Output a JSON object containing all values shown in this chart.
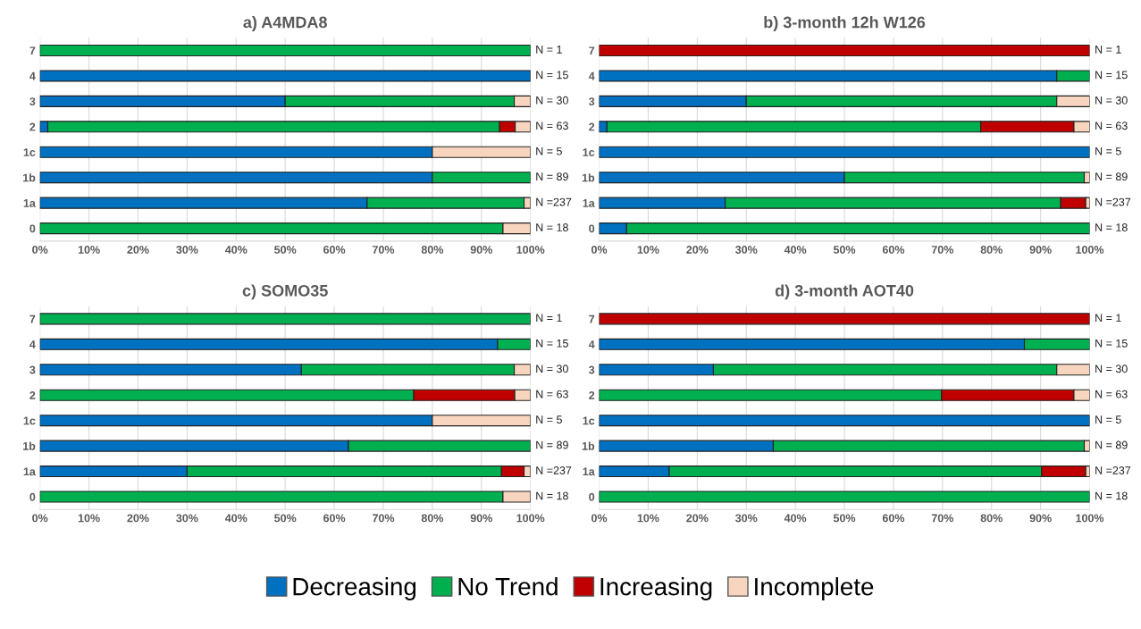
{
  "chart_data": [
    {
      "type": "bar",
      "orientation": "horizontal",
      "stacked": true,
      "title": "a) A4MDA8",
      "categories": [
        "7",
        "4",
        "3",
        "2",
        "1c",
        "1b",
        "1a",
        "0"
      ],
      "series": [
        {
          "name": "Decreasing",
          "color": "#0070c0",
          "values": [
            null,
            100,
            50,
            1.6,
            80,
            80,
            66.7,
            null
          ]
        },
        {
          "name": "No Trend",
          "color": "#00b050",
          "values": [
            100,
            null,
            46.7,
            92.1,
            null,
            20,
            32.0,
            94.4
          ]
        },
        {
          "name": "Increasing",
          "color": "#c00000",
          "values": [
            null,
            null,
            null,
            3.2,
            null,
            null,
            null,
            null
          ]
        },
        {
          "name": "Incomplete",
          "color": "#f8d5bf",
          "values": [
            null,
            null,
            3.3,
            3.1,
            20,
            null,
            1.3,
            5.6
          ]
        }
      ],
      "annotations": [
        "N = 1",
        "N = 15",
        "N = 30",
        "N = 63",
        "N = 5",
        "N = 89",
        "N =237",
        "N = 18"
      ],
      "xlim": [
        0,
        100
      ],
      "xticks": [
        {
          "value": 0,
          "label": "0%"
        },
        {
          "value": 10,
          "label": "10%"
        },
        {
          "value": 20,
          "label": "20%"
        },
        {
          "value": 30,
          "label": "30%"
        },
        {
          "value": 40,
          "label": "40%"
        },
        {
          "value": 50,
          "label": "50%"
        },
        {
          "value": 60,
          "label": "60%"
        },
        {
          "value": 70,
          "label": "70%"
        },
        {
          "value": 80,
          "label": "80%"
        },
        {
          "value": 90,
          "label": "90%"
        },
        {
          "value": 100,
          "label": "100%"
        }
      ],
      "grid": "x",
      "legend": "bottom"
    },
    {
      "type": "bar",
      "orientation": "horizontal",
      "stacked": true,
      "title": "b) 3-month 12h W126",
      "categories": [
        "7",
        "4",
        "3",
        "2",
        "1c",
        "1b",
        "1a",
        "0"
      ],
      "series": [
        {
          "name": "Decreasing",
          "color": "#0070c0",
          "values": [
            null,
            93.3,
            30,
            1.6,
            100,
            50,
            25.7,
            5.6
          ]
        },
        {
          "name": "No Trend",
          "color": "#00b050",
          "values": [
            null,
            6.7,
            63.3,
            76.2,
            null,
            48.9,
            68.4,
            94.4
          ]
        },
        {
          "name": "Increasing",
          "color": "#c00000",
          "values": [
            100,
            null,
            null,
            19.0,
            null,
            null,
            5.1,
            null
          ]
        },
        {
          "name": "Incomplete",
          "color": "#f8d5bf",
          "values": [
            null,
            null,
            6.7,
            3.2,
            null,
            1.1,
            0.8,
            null
          ]
        }
      ],
      "annotations": [
        "N = 1",
        "N = 15",
        "N = 30",
        "N = 63",
        "N = 5",
        "N = 89",
        "N =237",
        "N = 18"
      ],
      "xlim": [
        0,
        100
      ],
      "xticks": [
        {
          "value": 0,
          "label": "0%"
        },
        {
          "value": 10,
          "label": "10%"
        },
        {
          "value": 20,
          "label": "20%"
        },
        {
          "value": 30,
          "label": "30%"
        },
        {
          "value": 40,
          "label": "40%"
        },
        {
          "value": 50,
          "label": "50%"
        },
        {
          "value": 60,
          "label": "60%"
        },
        {
          "value": 70,
          "label": "70%"
        },
        {
          "value": 80,
          "label": "80%"
        },
        {
          "value": 90,
          "label": "90%"
        },
        {
          "value": 100,
          "label": "100%"
        }
      ],
      "grid": "x",
      "legend": "bottom"
    },
    {
      "type": "bar",
      "orientation": "horizontal",
      "stacked": true,
      "title": "c) SOMO35",
      "categories": [
        "7",
        "4",
        "3",
        "2",
        "1c",
        "1b",
        "1a",
        "0"
      ],
      "series": [
        {
          "name": "Decreasing",
          "color": "#0070c0",
          "values": [
            null,
            93.3,
            53.3,
            null,
            80,
            62.9,
            30.0,
            null
          ]
        },
        {
          "name": "No Trend",
          "color": "#00b050",
          "values": [
            100,
            6.7,
            43.4,
            76.2,
            null,
            37.1,
            64.1,
            94.4
          ]
        },
        {
          "name": "Increasing",
          "color": "#c00000",
          "values": [
            null,
            null,
            null,
            20.6,
            null,
            null,
            4.6,
            null
          ]
        },
        {
          "name": "Incomplete",
          "color": "#f8d5bf",
          "values": [
            null,
            null,
            3.3,
            3.2,
            20,
            null,
            1.3,
            5.6
          ]
        }
      ],
      "annotations": [
        "N = 1",
        "N = 15",
        "N = 30",
        "N = 63",
        "N = 5",
        "N = 89",
        "N =237",
        "N = 18"
      ],
      "xlim": [
        0,
        100
      ],
      "xticks": [
        {
          "value": 0,
          "label": "0%"
        },
        {
          "value": 10,
          "label": "10%"
        },
        {
          "value": 20,
          "label": "20%"
        },
        {
          "value": 30,
          "label": "30%"
        },
        {
          "value": 40,
          "label": "40%"
        },
        {
          "value": 50,
          "label": "50%"
        },
        {
          "value": 60,
          "label": "60%"
        },
        {
          "value": 70,
          "label": "70%"
        },
        {
          "value": 80,
          "label": "80%"
        },
        {
          "value": 90,
          "label": "90%"
        },
        {
          "value": 100,
          "label": "100%"
        }
      ],
      "grid": "x",
      "legend": "bottom"
    },
    {
      "type": "bar",
      "orientation": "horizontal",
      "stacked": true,
      "title": "d) 3-month AOT40",
      "categories": [
        "7",
        "4",
        "3",
        "2",
        "1c",
        "1b",
        "1a",
        "0"
      ],
      "series": [
        {
          "name": "Decreasing",
          "color": "#0070c0",
          "values": [
            null,
            86.7,
            23.3,
            null,
            100,
            35.5,
            14.3,
            null
          ]
        },
        {
          "name": "No Trend",
          "color": "#00b050",
          "values": [
            null,
            13.3,
            70.0,
            69.8,
            null,
            63.4,
            75.9,
            100
          ]
        },
        {
          "name": "Increasing",
          "color": "#c00000",
          "values": [
            100,
            null,
            null,
            27.0,
            null,
            null,
            9.0,
            null
          ]
        },
        {
          "name": "Incomplete",
          "color": "#f8d5bf",
          "values": [
            null,
            null,
            6.7,
            3.2,
            null,
            1.1,
            0.8,
            null
          ]
        }
      ],
      "annotations": [
        "N = 1",
        "N = 15",
        "N = 30",
        "N = 63",
        "N = 5",
        "N = 89",
        "N =237",
        "N = 18"
      ],
      "xlim": [
        0,
        100
      ],
      "xticks": [
        {
          "value": 0,
          "label": "0%"
        },
        {
          "value": 10,
          "label": "10%"
        },
        {
          "value": 20,
          "label": "20%"
        },
        {
          "value": 30,
          "label": "30%"
        },
        {
          "value": 40,
          "label": "40%"
        },
        {
          "value": 50,
          "label": "50%"
        },
        {
          "value": 60,
          "label": "60%"
        },
        {
          "value": 70,
          "label": "70%"
        },
        {
          "value": 80,
          "label": "80%"
        },
        {
          "value": 90,
          "label": "90%"
        },
        {
          "value": 100,
          "label": "100%"
        }
      ],
      "grid": "x",
      "legend": "bottom"
    }
  ]
}
